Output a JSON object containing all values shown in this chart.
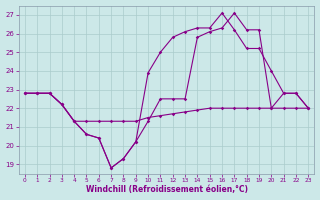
{
  "xlabel": "Windchill (Refroidissement éolien,°C)",
  "background_color": "#cce8e8",
  "grid_color": "#aacccc",
  "line_color": "#880088",
  "xlim": [
    -0.5,
    23.5
  ],
  "ylim": [
    18.5,
    27.5
  ],
  "yticks": [
    19,
    20,
    21,
    22,
    23,
    24,
    25,
    26,
    27
  ],
  "xticks": [
    0,
    1,
    2,
    3,
    4,
    5,
    6,
    7,
    8,
    9,
    10,
    11,
    12,
    13,
    14,
    15,
    16,
    17,
    18,
    19,
    20,
    21,
    22,
    23
  ],
  "line1_x": [
    0,
    1,
    2,
    3,
    4,
    5,
    6,
    7,
    8,
    9,
    10,
    11,
    12,
    13,
    14,
    15,
    16,
    17,
    18,
    19,
    20,
    21,
    22,
    23
  ],
  "line1_y": [
    22.8,
    22.8,
    22.8,
    22.2,
    21.3,
    21.3,
    21.3,
    21.3,
    21.3,
    21.3,
    21.5,
    21.6,
    21.7,
    21.8,
    21.9,
    22.0,
    22.0,
    22.0,
    22.0,
    22.0,
    22.0,
    22.0,
    22.0,
    22.0
  ],
  "line2_x": [
    0,
    1,
    2,
    3,
    4,
    5,
    6,
    7,
    8,
    9,
    10,
    11,
    12,
    13,
    14,
    15,
    16,
    17,
    18,
    19,
    20,
    21,
    22,
    23
  ],
  "line2_y": [
    22.8,
    22.8,
    22.8,
    22.2,
    21.3,
    20.6,
    20.4,
    18.8,
    19.3,
    20.2,
    21.3,
    22.5,
    22.5,
    22.5,
    25.8,
    26.1,
    26.3,
    27.1,
    26.2,
    26.2,
    22.0,
    22.8,
    22.8,
    22.0
  ],
  "line3_x": [
    0,
    1,
    2,
    3,
    4,
    5,
    6,
    7,
    8,
    9,
    10,
    11,
    12,
    13,
    14,
    15,
    16,
    17,
    18,
    19,
    20,
    21,
    22,
    23
  ],
  "line3_y": [
    22.8,
    22.8,
    22.8,
    22.2,
    21.3,
    20.6,
    20.4,
    18.8,
    19.3,
    20.2,
    23.9,
    25.0,
    25.8,
    26.1,
    26.3,
    26.3,
    27.1,
    26.2,
    25.2,
    25.2,
    24.0,
    22.8,
    22.8,
    22.0
  ]
}
